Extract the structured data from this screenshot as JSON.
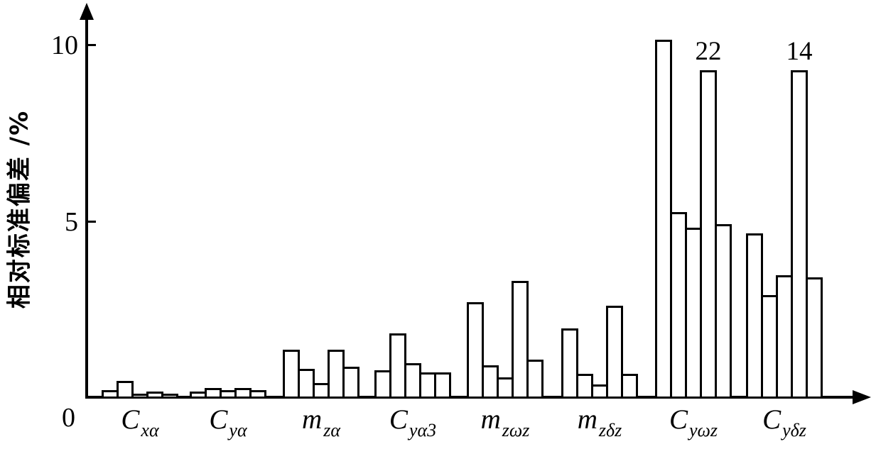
{
  "colors": {
    "ink": "#000000",
    "paper": "#ffffff"
  },
  "chart_data": {
    "type": "bar",
    "title": "",
    "xlabel": "",
    "ylabel": "相对标准偏差 /%",
    "ylim": [
      0,
      11
    ],
    "yticks": [
      "0",
      "5",
      "10"
    ],
    "grid": false,
    "legend": null,
    "bars_per_group": 5,
    "groups": [
      {
        "label_main": "C",
        "label_sub": "xα",
        "values": [
          0.25,
          0.5,
          0.15,
          0.2,
          0.15
        ]
      },
      {
        "label_main": "C",
        "label_sub": "yα",
        "values": [
          0.2,
          0.3,
          0.25,
          0.3,
          0.25
        ]
      },
      {
        "label_main": "m",
        "label_sub": "zα",
        "values": [
          1.4,
          0.85,
          0.45,
          1.4,
          0.9
        ]
      },
      {
        "label_main": "C",
        "label_sub": "yα3",
        "values": [
          0.8,
          1.85,
          1.0,
          0.75,
          0.75
        ]
      },
      {
        "label_main": "m",
        "label_sub": "zωz",
        "values": [
          2.75,
          0.95,
          0.6,
          3.35,
          1.1
        ]
      },
      {
        "label_main": "m",
        "label_sub": "zδz",
        "values": [
          2.0,
          0.7,
          0.4,
          2.65,
          0.7
        ]
      },
      {
        "label_main": "C",
        "label_sub": "yωz",
        "values": [
          10.2,
          5.3,
          4.85,
          22,
          4.95
        ],
        "display_values": [
          10.2,
          5.3,
          4.85,
          9.33,
          4.95
        ],
        "annotations": [
          {
            "bar_index": 3,
            "text": "22"
          }
        ]
      },
      {
        "label_main": "C",
        "label_sub": "yδz",
        "values": [
          4.7,
          2.95,
          3.5,
          14,
          3.45
        ],
        "display_values": [
          4.7,
          2.95,
          3.5,
          9.33,
          3.45
        ],
        "annotations": [
          {
            "bar_index": 3,
            "text": "14"
          }
        ]
      }
    ]
  }
}
